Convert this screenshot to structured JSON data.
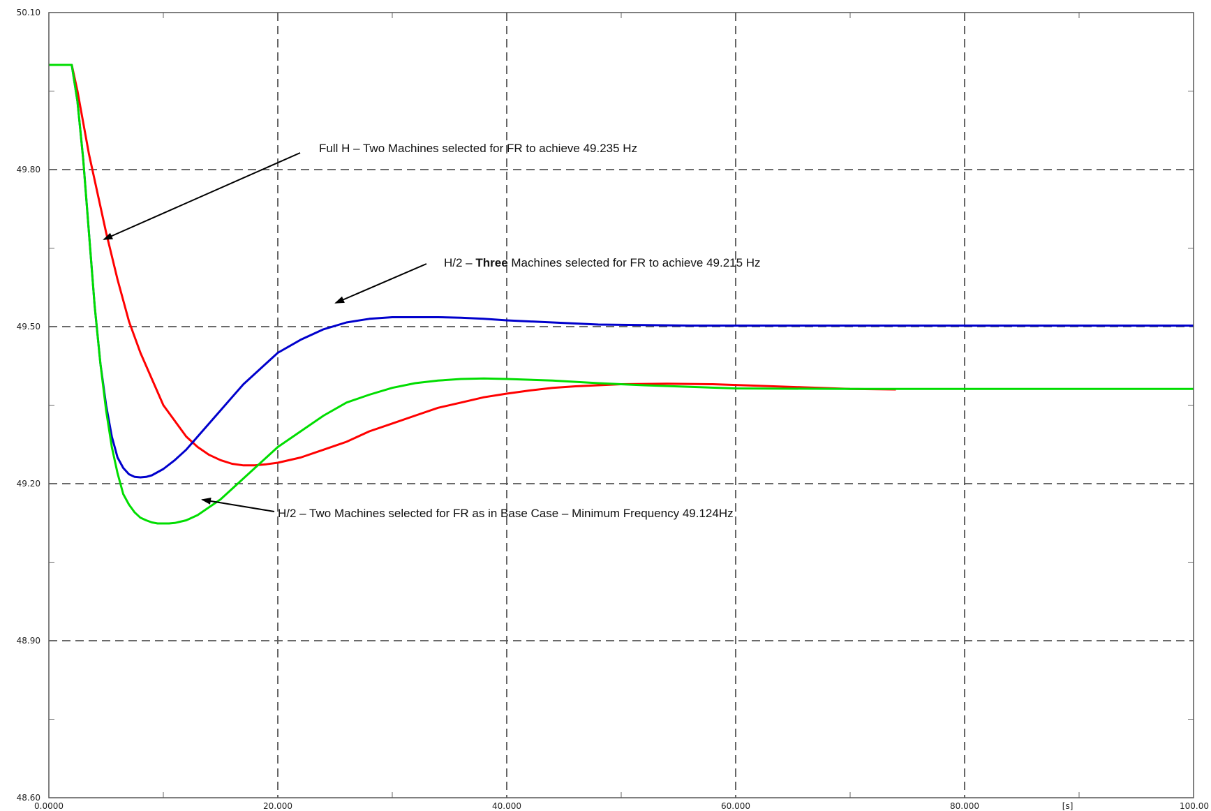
{
  "chart_data": {
    "type": "line",
    "xlim": [
      0,
      100
    ],
    "ylim": [
      48.6,
      50.1
    ],
    "grid": true,
    "x_tick_labels": [
      {
        "x": 0,
        "label": "0.0000"
      },
      {
        "x": 20,
        "label": "20.000"
      },
      {
        "x": 40,
        "label": "40.000"
      },
      {
        "x": 60,
        "label": "60.000"
      },
      {
        "x": 80,
        "label": "80.000"
      },
      {
        "x": 100,
        "label": "100.00"
      }
    ],
    "x_unit_label": {
      "x": 89,
      "label": "[s]"
    },
    "y_tick_labels": [
      {
        "y": 48.6,
        "label": "48.60"
      },
      {
        "y": 48.9,
        "label": "48.90"
      },
      {
        "y": 49.2,
        "label": "49.20"
      },
      {
        "y": 49.5,
        "label": "49.50"
      },
      {
        "y": 49.8,
        "label": "49.80"
      },
      {
        "y": 50.1,
        "label": "50.10"
      }
    ],
    "x_major": [
      20,
      40,
      60,
      80
    ],
    "x_minor": [
      10,
      30,
      50,
      70,
      90
    ],
    "y_major": [
      48.9,
      49.2,
      49.5,
      49.8
    ],
    "y_minor": [
      48.75,
      49.05,
      49.35,
      49.65,
      49.95
    ],
    "series": [
      {
        "color": "#ff0000",
        "x": [
          0,
          2,
          2.5,
          3,
          3.5,
          4,
          4.5,
          5,
          6,
          7,
          8,
          9,
          10,
          11,
          12,
          13,
          14,
          15,
          16,
          17,
          18,
          19,
          20,
          22,
          24,
          26,
          28,
          30,
          32,
          34,
          36,
          38,
          40,
          42,
          44,
          46,
          48,
          50,
          54,
          58,
          62,
          66,
          70,
          74
        ],
        "y": [
          50.0,
          50.0,
          49.95,
          49.89,
          49.83,
          49.78,
          49.73,
          49.68,
          49.59,
          49.51,
          49.45,
          49.4,
          49.35,
          49.32,
          49.29,
          49.27,
          49.255,
          49.245,
          49.238,
          49.235,
          49.235,
          49.237,
          49.24,
          49.25,
          49.265,
          49.28,
          49.3,
          49.315,
          49.33,
          49.345,
          49.355,
          49.365,
          49.372,
          49.378,
          49.383,
          49.386,
          49.388,
          49.39,
          49.391,
          49.39,
          49.387,
          49.384,
          49.381,
          49.38
        ]
      },
      {
        "color": "#0000cc",
        "x": [
          0,
          2,
          2.5,
          3,
          3.5,
          4,
          4.5,
          5,
          5.5,
          6,
          6.5,
          7,
          7.5,
          8,
          8.5,
          9,
          10,
          11,
          12,
          13,
          14,
          15,
          16,
          17,
          18,
          19,
          20,
          22,
          24,
          26,
          28,
          30,
          32,
          34,
          36,
          38,
          40,
          44,
          48,
          52,
          56,
          60,
          70,
          80,
          90,
          100
        ],
        "y": [
          50.0,
          50.0,
          49.93,
          49.82,
          49.68,
          49.54,
          49.43,
          49.35,
          49.29,
          49.25,
          49.23,
          49.218,
          49.213,
          49.212,
          49.213,
          49.216,
          49.228,
          49.245,
          49.265,
          49.29,
          49.315,
          49.34,
          49.365,
          49.39,
          49.41,
          49.43,
          49.45,
          49.475,
          49.495,
          49.508,
          49.515,
          49.518,
          49.518,
          49.518,
          49.517,
          49.515,
          49.512,
          49.508,
          49.504,
          49.503,
          49.502,
          49.502,
          49.502,
          49.502,
          49.502,
          49.502
        ]
      },
      {
        "color": "#00dd00",
        "x": [
          0,
          2,
          2.5,
          3,
          3.5,
          4,
          4.5,
          5,
          5.5,
          6,
          6.5,
          7,
          7.5,
          8,
          8.5,
          9,
          9.5,
          10,
          10.5,
          11,
          12,
          13,
          14,
          15,
          16,
          17,
          18,
          19,
          20,
          22,
          24,
          26,
          28,
          30,
          32,
          34,
          36,
          38,
          40,
          44,
          48,
          52,
          56,
          60,
          70,
          80,
          90,
          100
        ],
        "y": [
          50.0,
          50.0,
          49.93,
          49.82,
          49.68,
          49.54,
          49.43,
          49.34,
          49.27,
          49.22,
          49.18,
          49.16,
          49.145,
          49.135,
          49.13,
          49.126,
          49.124,
          49.124,
          49.124,
          49.125,
          49.13,
          49.14,
          49.155,
          49.17,
          49.19,
          49.21,
          49.23,
          49.25,
          49.27,
          49.3,
          49.33,
          49.355,
          49.37,
          49.383,
          49.392,
          49.397,
          49.4,
          49.401,
          49.4,
          49.397,
          49.392,
          49.388,
          49.385,
          49.382,
          49.381,
          49.381,
          49.381,
          49.381
        ]
      }
    ],
    "annotations": [
      {
        "text": "Full H – Two Machines selected for FR to achieve 49.235 Hz"
      },
      {
        "text_before": "H/2 – ",
        "text_bold": "Three",
        "text_after": " Machines selected for FR to achieve 49.215 Hz"
      },
      {
        "text": "H/2 – Two Machines selected for FR as in Base Case – Minimum Frequency 49.124Hz"
      }
    ]
  }
}
